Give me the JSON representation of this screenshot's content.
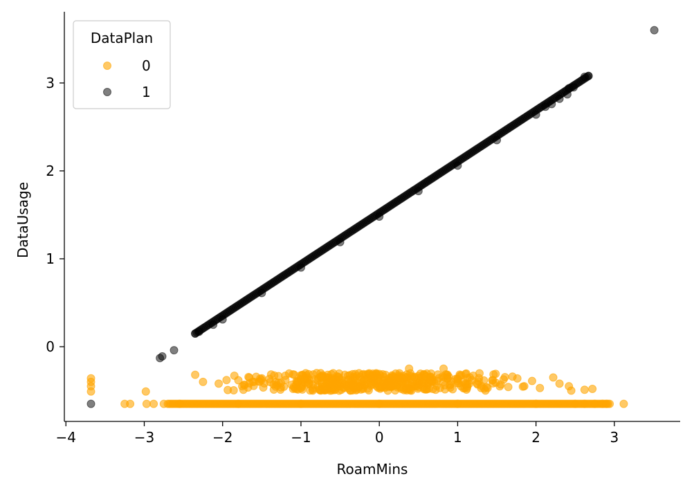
{
  "chart_data": {
    "type": "scatter",
    "title": "",
    "xlabel": "RoamMins",
    "ylabel": "DataUsage",
    "xlim": [
      -4.02,
      3.84
    ],
    "ylim": [
      -0.85,
      3.81
    ],
    "xticks": [
      -4,
      -3,
      -2,
      -1,
      0,
      1,
      2,
      3
    ],
    "yticks": [
      0,
      1,
      2,
      3
    ],
    "tick_labels_x": [
      "−4",
      "−3",
      "−2",
      "−1",
      "0",
      "1",
      "2",
      "3"
    ],
    "tick_labels_y": [
      "0",
      "1",
      "2",
      "3"
    ],
    "grid": false,
    "legend": {
      "title": "DataPlan",
      "placement": "top-left",
      "entries": [
        "0",
        "1"
      ]
    },
    "series": [
      {
        "name": "0",
        "color": "#FFA500",
        "opacity": 0.6,
        "points": [
          [
            -3.68,
            -0.36
          ],
          [
            -3.68,
            -0.4
          ],
          [
            -3.68,
            -0.45
          ],
          [
            -3.68,
            -0.51
          ],
          [
            -3.25,
            -0.65
          ],
          [
            -3.18,
            -0.65
          ],
          [
            -2.98,
            -0.51
          ],
          [
            -2.97,
            -0.65
          ],
          [
            -2.88,
            -0.65
          ],
          [
            -2.75,
            -0.65
          ],
          [
            -2.55,
            -0.65
          ],
          [
            -2.35,
            -0.32
          ],
          [
            -2.25,
            -0.4
          ],
          [
            -2.05,
            -0.42
          ],
          [
            -1.95,
            -0.38
          ],
          [
            -1.85,
            -0.33
          ],
          [
            -1.75,
            -0.45
          ],
          [
            -1.6,
            -0.4
          ],
          [
            -1.5,
            -0.36
          ],
          [
            -1.35,
            -0.43
          ],
          [
            -1.2,
            -0.33
          ],
          [
            -1.1,
            -0.48
          ],
          [
            -1.0,
            -0.38
          ],
          [
            -0.9,
            -0.42
          ],
          [
            -0.8,
            -0.3
          ],
          [
            -0.7,
            -0.45
          ],
          [
            -0.6,
            -0.36
          ],
          [
            -0.5,
            -0.41
          ],
          [
            -0.4,
            -0.33
          ],
          [
            -0.3,
            -0.47
          ],
          [
            -0.2,
            -0.39
          ],
          [
            -0.1,
            -0.43
          ],
          [
            0.0,
            -0.31
          ],
          [
            0.1,
            -0.44
          ],
          [
            0.2,
            -0.37
          ],
          [
            0.3,
            -0.41
          ],
          [
            0.38,
            -0.25
          ],
          [
            0.5,
            -0.46
          ],
          [
            0.6,
            -0.34
          ],
          [
            0.7,
            -0.4
          ],
          [
            0.82,
            -0.25
          ],
          [
            0.9,
            -0.44
          ],
          [
            1.0,
            -0.37
          ],
          [
            1.1,
            -0.42
          ],
          [
            1.2,
            -0.33
          ],
          [
            1.3,
            -0.47
          ],
          [
            1.45,
            -0.38
          ],
          [
            1.55,
            -0.43
          ],
          [
            1.7,
            -0.34
          ],
          [
            1.85,
            -0.45
          ],
          [
            1.95,
            -0.39
          ],
          [
            2.05,
            -0.47
          ],
          [
            2.22,
            -0.35
          ],
          [
            2.3,
            -0.42
          ],
          [
            2.42,
            -0.45
          ],
          [
            2.45,
            -0.5
          ],
          [
            2.62,
            -0.49
          ],
          [
            2.72,
            -0.48
          ],
          [
            2.5,
            -0.65
          ],
          [
            2.62,
            -0.65
          ],
          [
            2.75,
            -0.65
          ],
          [
            2.85,
            -0.65
          ],
          [
            2.9,
            -0.65
          ],
          [
            3.12,
            -0.65
          ],
          [
            -1.8,
            -0.65
          ],
          [
            -1.0,
            -0.65
          ],
          [
            0.0,
            -0.65
          ],
          [
            1.0,
            -0.65
          ],
          [
            2.0,
            -0.65
          ]
        ]
      },
      {
        "name": "1",
        "color": "#000000",
        "opacity": 0.5,
        "line": {
          "x": [
            -2.35,
            2.67
          ],
          "y": [
            0.15,
            3.08
          ]
        },
        "points": [
          [
            -3.68,
            -0.65
          ],
          [
            -2.8,
            -0.13
          ],
          [
            -2.77,
            -0.11
          ],
          [
            -2.62,
            -0.04
          ],
          [
            -2.35,
            0.15
          ],
          [
            -2.3,
            0.17
          ],
          [
            -2.12,
            0.25
          ],
          [
            -2.0,
            0.31
          ],
          [
            -1.5,
            0.61
          ],
          [
            -1.0,
            0.9
          ],
          [
            -0.5,
            1.19
          ],
          [
            0.0,
            1.48
          ],
          [
            0.5,
            1.77
          ],
          [
            1.0,
            2.06
          ],
          [
            1.5,
            2.35
          ],
          [
            2.0,
            2.64
          ],
          [
            2.12,
            2.73
          ],
          [
            2.2,
            2.76
          ],
          [
            2.3,
            2.82
          ],
          [
            2.4,
            2.87
          ],
          [
            2.42,
            2.94
          ],
          [
            2.48,
            2.95
          ],
          [
            2.62,
            3.07
          ],
          [
            2.67,
            3.08
          ],
          [
            3.51,
            3.6
          ]
        ]
      }
    ],
    "band": {
      "x": [
        -2.7,
        2.95
      ],
      "y": -0.65
    }
  }
}
